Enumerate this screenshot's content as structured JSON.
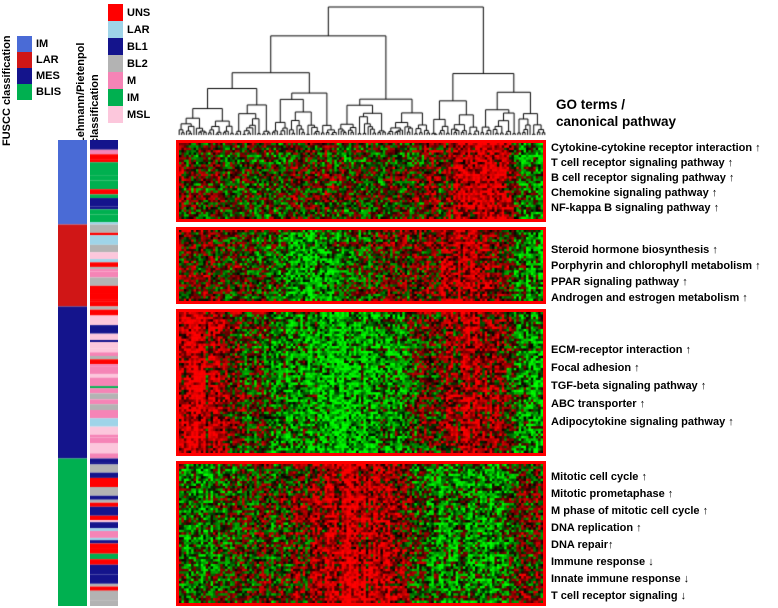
{
  "go_header": {
    "line1": "GO terms /",
    "line2": "canonical pathway"
  },
  "fuscc": {
    "title": "FUSCC classification",
    "legend": [
      {
        "label": "IM",
        "color": "#4a6bd6"
      },
      {
        "label": "LAR",
        "color": "#d01616"
      },
      {
        "label": "MES",
        "color": "#14148c"
      },
      {
        "label": "BLIS",
        "color": "#00b050"
      }
    ]
  },
  "lehmann": {
    "title": "Lehmann/Pietenpol\nclassification",
    "legend": [
      {
        "label": "UNS",
        "color": "#ff0000"
      },
      {
        "label": "LAR",
        "color": "#9fd4e8"
      },
      {
        "label": "BL1",
        "color": "#14148c"
      },
      {
        "label": "BL2",
        "color": "#b3b3b3"
      },
      {
        "label": "M",
        "color": "#f584b6"
      },
      {
        "label": "IM",
        "color": "#00b050"
      },
      {
        "label": "MSL",
        "color": "#fcc7dc"
      }
    ]
  },
  "chart_data": {
    "type": "heatmap",
    "colormap": {
      "high": "#ff0000",
      "mid": "#000000",
      "low": "#00ff00"
    },
    "block_border_color": "#ff0000",
    "n_sample_columns": 150,
    "dendrogram": "hierarchical clustering of sample columns drawn above heatmap",
    "row_blocks": [
      {
        "fuscc_subtype": "IM",
        "n_rows": 32,
        "column_bias_profile": [
          0.15,
          0.1,
          0,
          -0.1,
          -0.15,
          -0.1,
          0,
          0.1,
          0.05,
          -0.05,
          -0.1,
          0,
          0.1,
          0.2,
          0.5,
          0.85,
          0.9,
          0.8,
          -0.3,
          -0.55
        ],
        "go_terms": [
          "Cytokine-cytokine receptor interaction ↑",
          "T cell receptor signaling pathway ↑",
          "B cell receptor signaling pathway ↑",
          "Chemokine signaling pathway ↑",
          "NF-kappa B signaling pathway ↑"
        ]
      },
      {
        "fuscc_subtype": "LAR",
        "n_rows": 30,
        "column_bias_profile": [
          0.2,
          0.15,
          0.1,
          0,
          -0.1,
          -0.3,
          -0.6,
          -0.65,
          -0.5,
          -0.2,
          0,
          0.1,
          0.15,
          0.3,
          0.6,
          0.75,
          0.6,
          0.2,
          -0.4,
          -0.6
        ],
        "go_terms": [
          "Steroid hormone biosynthesis ↑",
          "Porphyrin and chlorophyll metabolism ↑",
          "PPAR signaling pathway ↑",
          "Androgen and estrogen metabolism ↑"
        ]
      },
      {
        "fuscc_subtype": "MES",
        "n_rows": 58,
        "column_bias_profile": [
          0.8,
          0.85,
          0.6,
          0.2,
          0,
          -0.3,
          -0.5,
          -0.65,
          -0.7,
          -0.65,
          -0.55,
          -0.4,
          -0.2,
          0.1,
          0.4,
          0.65,
          0.7,
          0.5,
          -0.3,
          -0.6
        ],
        "go_terms": [
          "ECM-receptor interaction ↑",
          "Focal adhesion ↑",
          "TGF-beta signaling pathway ↑",
          "ABC transporter ↑",
          "Adipocytokine signaling pathway ↑"
        ]
      },
      {
        "fuscc_subtype": "BLIS",
        "n_rows": 57,
        "column_bias_profile": [
          -0.3,
          -0.4,
          -0.2,
          0,
          0.1,
          0,
          0.2,
          0.5,
          0.8,
          0.85,
          0.8,
          0.6,
          0.2,
          -0.3,
          -0.5,
          -0.6,
          -0.55,
          -0.4,
          0.3,
          0.1
        ],
        "go_terms": [
          "Mitotic cell cycle ↑",
          "Mitotic prometaphase ↑",
          "M phase of mitotic cell cycle ↑",
          "DNA replication ↑",
          "DNA repair↑",
          "Immune response ↓",
          "Innate immune response ↓",
          "T cell receptor signaling ↓"
        ]
      }
    ],
    "lehmann_bar_mix": {
      "IM": {
        "IM": 0.45,
        "UNS": 0.15,
        "BL1": 0.12,
        "M": 0.08,
        "MSL": 0.06,
        "BL2": 0.07,
        "LAR": 0.07
      },
      "LAR": {
        "LAR": 0.4,
        "BL2": 0.2,
        "MSL": 0.15,
        "UNS": 0.13,
        "M": 0.12
      },
      "MES": {
        "M": 0.28,
        "MSL": 0.22,
        "BL2": 0.16,
        "UNS": 0.12,
        "BL1": 0.1,
        "IM": 0.06,
        "LAR": 0.06
      },
      "BLIS": {
        "BL1": 0.42,
        "UNS": 0.2,
        "BL2": 0.1,
        "IM": 0.1,
        "M": 0.06,
        "MSL": 0.06,
        "LAR": 0.06
      }
    }
  }
}
